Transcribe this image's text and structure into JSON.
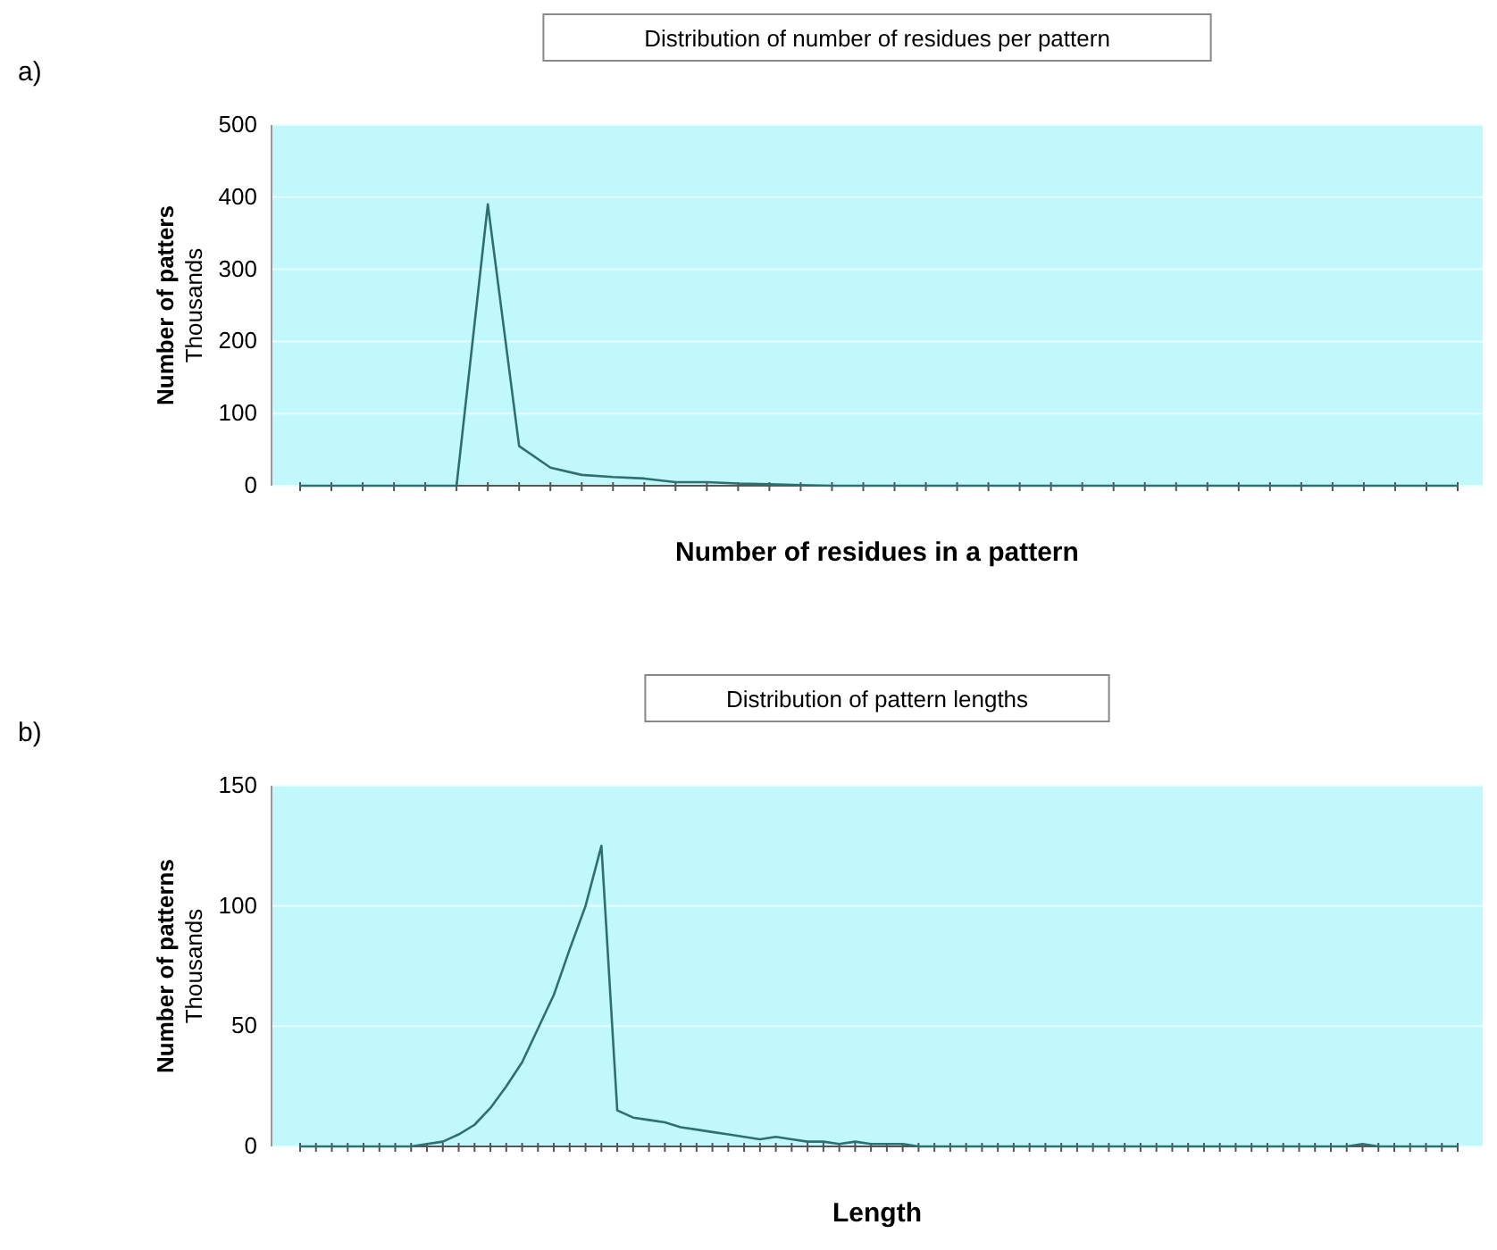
{
  "chart_data": [
    {
      "type": "line",
      "title": "Distribution of number of residues per pattern",
      "xlabel": "Number of residues in a pattern",
      "ylabel": "Number of patters\nThousands",
      "annotations": [
        "a)"
      ],
      "categories": [
        null,
        null,
        null,
        null,
        null,
        null,
        null,
        null,
        null,
        null,
        null,
        null,
        null,
        null,
        null,
        null,
        null,
        null,
        null,
        null,
        null,
        null,
        null,
        null,
        null,
        null,
        null,
        null,
        null,
        null,
        null,
        null,
        null,
        null,
        null,
        null,
        null,
        null
      ],
      "series": [
        {
          "color": "#2f6f6f",
          "values": [
            0,
            0,
            0,
            0,
            0,
            0,
            390,
            55,
            25,
            15,
            12,
            10,
            5,
            5,
            3,
            2,
            1,
            0,
            0,
            0,
            0,
            0,
            0,
            0,
            0,
            0,
            0,
            0,
            0,
            0,
            0,
            0,
            0,
            0,
            0,
            0,
            0,
            0
          ]
        }
      ],
      "ylim": [
        0,
        500
      ],
      "yticks": [
        0,
        100,
        200,
        300,
        400,
        500
      ],
      "grid": "y",
      "tick_labels": "y",
      "marker": "none",
      "line_style": "solid"
    },
    {
      "type": "line",
      "title": "Distribution of pattern lengths",
      "xlabel": "Length",
      "ylabel": "Number of patterns\nThousands",
      "annotations": [
        "b)"
      ],
      "categories": [
        null,
        null,
        null,
        null,
        null,
        null,
        null,
        null,
        null,
        null,
        null,
        null,
        null,
        null,
        null,
        null,
        null,
        null,
        null,
        null,
        null,
        null,
        null,
        null,
        null,
        null,
        null,
        null,
        null,
        null,
        null,
        null,
        null,
        null,
        null,
        null,
        null,
        null,
        null,
        null,
        null,
        null,
        null,
        null,
        null,
        null,
        null,
        null,
        null,
        null,
        null,
        null,
        null,
        null,
        null,
        null,
        null,
        null,
        null,
        null,
        null,
        null,
        null,
        null,
        null,
        null,
        null,
        null,
        null,
        null,
        null,
        null,
        null,
        null
      ],
      "series": [
        {
          "color": "#2f6f6f",
          "values": [
            0,
            0,
            0,
            0,
            0,
            0,
            0,
            0,
            1,
            2,
            5,
            9,
            16,
            25,
            35,
            49,
            63,
            82,
            100,
            125,
            15,
            12,
            11,
            10,
            8,
            7,
            6,
            5,
            4,
            3,
            4,
            3,
            2,
            2,
            1,
            2,
            1,
            1,
            1,
            0,
            0,
            0,
            0,
            0,
            0,
            0,
            0,
            0,
            0,
            0,
            0,
            0,
            0,
            0,
            0,
            0,
            0,
            0,
            0,
            0,
            0,
            0,
            0,
            0,
            0,
            0,
            0,
            1,
            0,
            0,
            0,
            0,
            0,
            0
          ]
        }
      ],
      "ylim": [
        0,
        150
      ],
      "yticks": [
        0,
        50,
        100,
        150
      ],
      "grid": "y",
      "tick_labels": "y",
      "marker": "none",
      "line_style": "solid"
    }
  ]
}
